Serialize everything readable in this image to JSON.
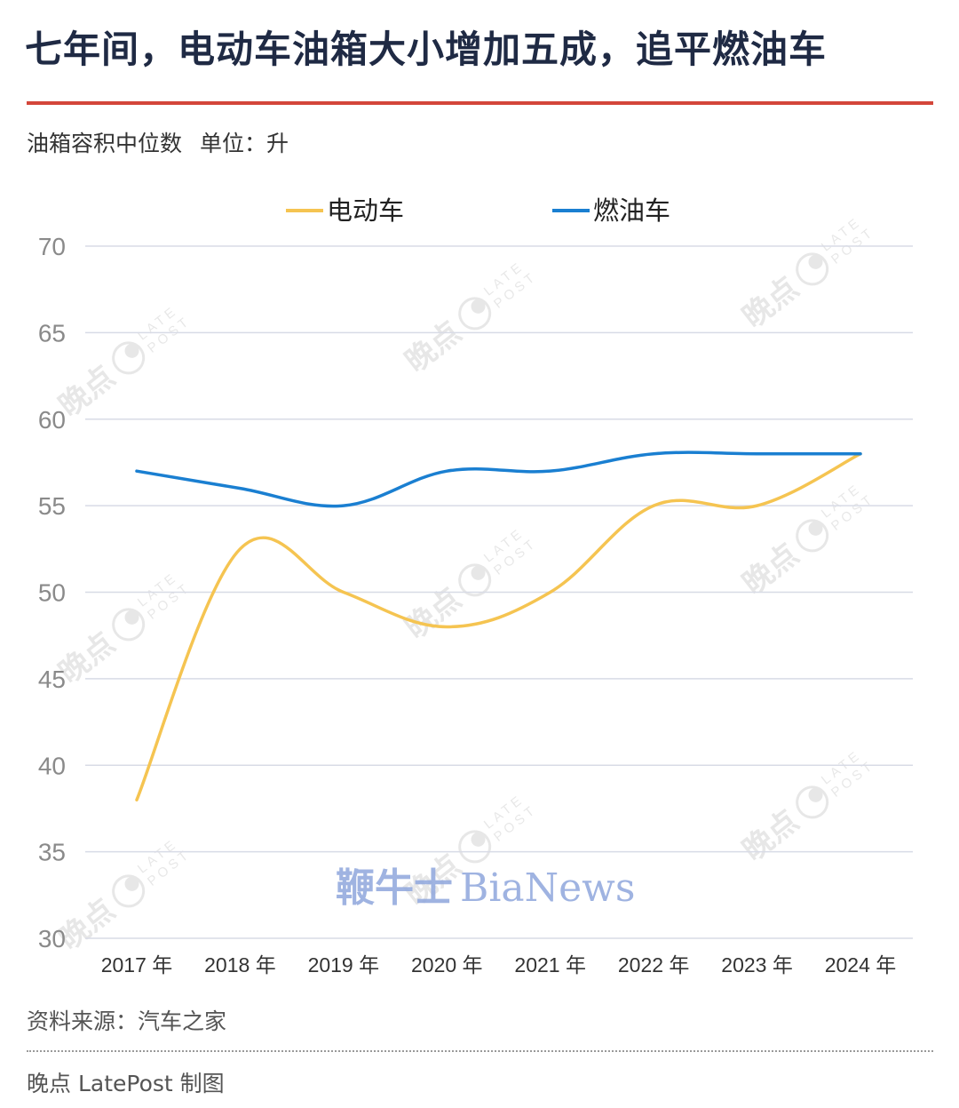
{
  "title": "七年间，电动车油箱大小增加五成，追平燃油车",
  "subtitle": "油箱容积中位数",
  "unit_label": "单位：升",
  "source": "资料来源：汽车之家",
  "credit": "晚点 LatePost 制图",
  "watermark": {
    "cn": "晚点",
    "en_top": "LATE",
    "en_bottom": "POST",
    "bianews_cn": "鞭牛士",
    "bianews_en": "BiaNews"
  },
  "colors": {
    "ev": "#f5c451",
    "ice": "#1a7fd1",
    "title": "#1f2a44",
    "accent_rule": "#d4463a",
    "grid": "#d8dbe6",
    "tick": "#8a8a8a"
  },
  "chart_data": {
    "type": "line",
    "categories": [
      "2017 年",
      "2018 年",
      "2019 年",
      "2020 年",
      "2021 年",
      "2022 年",
      "2023 年",
      "2024 年"
    ],
    "series": [
      {
        "name": "电动车",
        "color": "#f5c451",
        "values": [
          38,
          52.5,
          50,
          48,
          50,
          55,
          55,
          58
        ]
      },
      {
        "name": "燃油车",
        "color": "#1a7fd1",
        "values": [
          57,
          56,
          55,
          57,
          57,
          58,
          58,
          58
        ]
      }
    ],
    "ylim": [
      30,
      70
    ],
    "yticks": [
      30,
      35,
      40,
      45,
      50,
      55,
      60,
      65,
      70
    ],
    "grid": true,
    "legend_position": "top-center",
    "smooth": true
  }
}
